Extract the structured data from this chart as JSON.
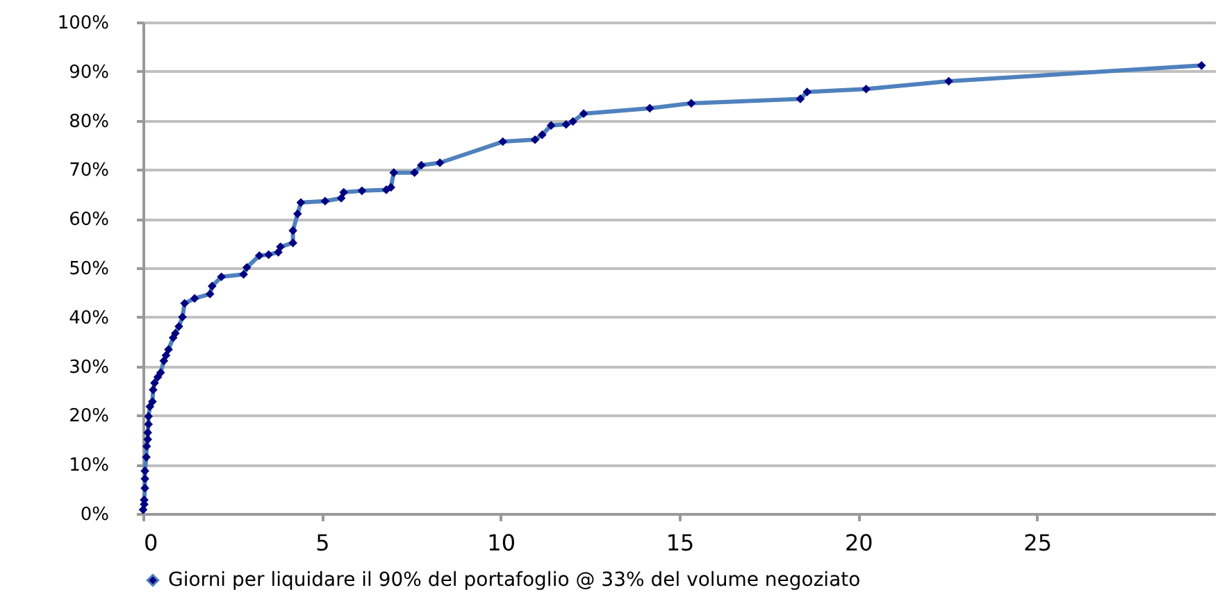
{
  "chart_data": {
    "type": "line",
    "x": [
      0,
      0.03,
      0.03,
      0.05,
      0.05,
      0.05,
      0.09,
      0.1,
      0.13,
      0.13,
      0.15,
      0.15,
      0.19,
      0.26,
      0.28,
      0.32,
      0.41,
      0.49,
      0.58,
      0.64,
      0.71,
      0.84,
      0.9,
      1.0,
      1.1,
      1.16,
      1.44,
      1.87,
      1.93,
      2.19,
      2.81,
      2.9,
      3.25,
      3.51,
      3.78,
      3.84,
      4.19,
      4.19,
      4.32,
      4.41,
      5.09,
      5.54,
      5.61,
      6.12,
      6.8,
      6.93,
      7.01,
      7.59,
      7.78,
      8.3,
      10.06,
      10.96,
      11.16,
      11.41,
      11.83,
      12.02,
      12.32,
      14.17,
      15.33,
      18.38,
      18.57,
      20.22,
      22.53,
      29.6
    ],
    "series": [
      {
        "name": "Giorni per liquidare il 90% del portafoglio @ 33% del volume negoziato",
        "color": "#4f81bd",
        "values": [
          0.8,
          1.9,
          2.8,
          5.2,
          7.1,
          8.7,
          11.5,
          13.7,
          15.1,
          16.5,
          18.2,
          19.8,
          21.8,
          22.8,
          25.2,
          26.6,
          27.8,
          28.7,
          31.1,
          32.2,
          33.4,
          35.8,
          36.7,
          38.1,
          40.0,
          42.8,
          43.8,
          44.7,
          46.3,
          48.2,
          48.7,
          50.1,
          52.5,
          52.7,
          53.2,
          54.3,
          55.1,
          57.6,
          61.0,
          63.3,
          63.6,
          64.2,
          65.4,
          65.7,
          65.9,
          66.4,
          69.4,
          69.4,
          70.9,
          71.4,
          75.7,
          76.1,
          77.1,
          79.0,
          79.2,
          79.8,
          81.4,
          82.5,
          83.5,
          84.4,
          85.8,
          86.4,
          88.0,
          91.2
        ]
      }
    ],
    "xlim": [
      0,
      30
    ],
    "xticks": [
      0,
      5,
      10,
      15,
      20,
      25
    ],
    "ylim": [
      0,
      100
    ],
    "yticks": [
      {
        "value": 0,
        "label": "0%"
      },
      {
        "value": 10,
        "label": "10%"
      },
      {
        "value": 20,
        "label": "20%"
      },
      {
        "value": 30,
        "label": "30%"
      },
      {
        "value": 40,
        "label": "40%"
      },
      {
        "value": 50,
        "label": "50%"
      },
      {
        "value": 60,
        "label": "60%"
      },
      {
        "value": 70,
        "label": "70%"
      },
      {
        "value": 80,
        "label": "80%"
      },
      {
        "value": 90,
        "label": "90%"
      },
      {
        "value": 100,
        "label": "100%"
      }
    ],
    "grid": "y",
    "legend": "bottom",
    "marker": "diamond",
    "line_style": "solid"
  }
}
